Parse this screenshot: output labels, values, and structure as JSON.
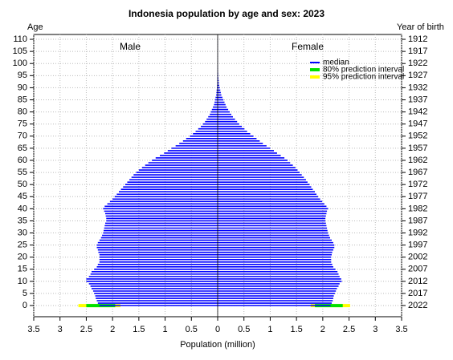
{
  "chart_data": {
    "type": "pyramid",
    "title": "Indonesia population by age and sex: 2023",
    "ylabel": "Age",
    "y2label": "Year of birth",
    "xlabel": "Population (million)",
    "xlim": [
      -3.5,
      3.5
    ],
    "xticks": [
      {
        "value": -3.5,
        "label": "3.5"
      },
      {
        "value": -3,
        "label": "3"
      },
      {
        "value": -2.5,
        "label": "2.5"
      },
      {
        "value": -2,
        "label": "2"
      },
      {
        "value": -1.5,
        "label": "1.5"
      },
      {
        "value": -1,
        "label": "1"
      },
      {
        "value": -0.5,
        "label": "0.5"
      },
      0,
      0.5,
      1,
      1.5,
      2,
      2.5,
      3,
      3.5
    ],
    "ylim": [
      -4.6,
      112
    ],
    "yticks": [
      0,
      5,
      10,
      15,
      20,
      25,
      30,
      35,
      40,
      45,
      50,
      55,
      60,
      65,
      70,
      75,
      80,
      85,
      90,
      95,
      100,
      105,
      110
    ],
    "y2lim": [
      -4.6,
      112
    ],
    "y2ticks": [
      {
        "value": 0,
        "label": "2022"
      },
      {
        "value": 5,
        "label": "2017"
      },
      {
        "value": 10,
        "label": "2012"
      },
      {
        "value": 15,
        "label": "2007"
      },
      {
        "value": 20,
        "label": "2002"
      },
      {
        "value": 25,
        "label": "1997"
      },
      {
        "value": 30,
        "label": "1992"
      },
      {
        "value": 35,
        "label": "1987"
      },
      {
        "value": 40,
        "label": "1982"
      },
      {
        "value": 45,
        "label": "1977"
      },
      {
        "value": 50,
        "label": "1972"
      },
      {
        "value": 55,
        "label": "1967"
      },
      {
        "value": 60,
        "label": "1962"
      },
      {
        "value": 65,
        "label": "1957"
      },
      {
        "value": 70,
        "label": "1952"
      },
      {
        "value": 75,
        "label": "1947"
      },
      {
        "value": 80,
        "label": "1942"
      },
      {
        "value": 85,
        "label": "1937"
      },
      {
        "value": 90,
        "label": "1932"
      },
      {
        "value": 95,
        "label": "1927"
      },
      {
        "value": 100,
        "label": "1922"
      },
      {
        "value": 105,
        "label": "1917"
      },
      {
        "value": 110,
        "label": "1912"
      }
    ],
    "grid": true,
    "y": [
      0,
      1,
      2,
      3,
      4,
      5,
      6,
      7,
      8,
      9,
      10,
      11,
      12,
      13,
      14,
      15,
      16,
      17,
      18,
      19,
      20,
      21,
      22,
      23,
      24,
      25,
      26,
      27,
      28,
      29,
      30,
      31,
      32,
      33,
      34,
      35,
      36,
      37,
      38,
      39,
      40,
      41,
      42,
      43,
      44,
      45,
      46,
      47,
      48,
      49,
      50,
      51,
      52,
      53,
      54,
      55,
      56,
      57,
      58,
      59,
      60,
      61,
      62,
      63,
      64,
      65,
      66,
      67,
      68,
      69,
      70,
      71,
      72,
      73,
      74,
      75,
      76,
      77,
      78,
      79,
      80,
      81,
      82,
      83,
      84,
      85,
      86,
      87,
      88,
      89,
      90,
      91,
      92,
      93,
      94,
      95,
      96,
      97,
      98,
      99,
      100,
      101,
      102,
      103,
      104,
      105,
      106,
      107,
      108,
      109,
      110
    ],
    "median_label": "median",
    "median_color": "#0000ff",
    "series": [
      {
        "name": "Male",
        "side": "left",
        "values": [
          2.25,
          2.28,
          2.3,
          2.32,
          2.33,
          2.35,
          2.37,
          2.4,
          2.42,
          2.45,
          2.5,
          2.5,
          2.45,
          2.42,
          2.4,
          2.35,
          2.3,
          2.28,
          2.25,
          2.25,
          2.25,
          2.25,
          2.27,
          2.28,
          2.3,
          2.3,
          2.28,
          2.25,
          2.22,
          2.2,
          2.18,
          2.17,
          2.16,
          2.15,
          2.14,
          2.12,
          2.12,
          2.13,
          2.14,
          2.16,
          2.18,
          2.15,
          2.1,
          2.05,
          2.0,
          1.96,
          1.92,
          1.88,
          1.84,
          1.8,
          1.76,
          1.72,
          1.68,
          1.64,
          1.6,
          1.55,
          1.5,
          1.44,
          1.38,
          1.32,
          1.25,
          1.18,
          1.1,
          1.02,
          0.95,
          0.88,
          0.8,
          0.73,
          0.66,
          0.6,
          0.53,
          0.47,
          0.42,
          0.37,
          0.32,
          0.28,
          0.24,
          0.21,
          0.18,
          0.15,
          0.13,
          0.11,
          0.09,
          0.07,
          0.06,
          0.05,
          0.04,
          0.03,
          0.025,
          0.02,
          0.015,
          0.012,
          0.01,
          0.008,
          0.006,
          0.005,
          0.004,
          0.003,
          0.002,
          0.002,
          0.001,
          0.001,
          0.001,
          0.001,
          0.001,
          0.001,
          0.001,
          0.001,
          0.001,
          0.001,
          0.001
        ]
      },
      {
        "name": "Female",
        "side": "right",
        "values": [
          2.15,
          2.17,
          2.19,
          2.2,
          2.21,
          2.23,
          2.25,
          2.27,
          2.3,
          2.32,
          2.36,
          2.35,
          2.32,
          2.3,
          2.28,
          2.24,
          2.2,
          2.18,
          2.16,
          2.16,
          2.16,
          2.17,
          2.18,
          2.2,
          2.22,
          2.22,
          2.2,
          2.17,
          2.14,
          2.12,
          2.1,
          2.09,
          2.08,
          2.07,
          2.06,
          2.05,
          2.05,
          2.06,
          2.07,
          2.08,
          2.1,
          2.07,
          2.03,
          1.99,
          1.95,
          1.91,
          1.88,
          1.85,
          1.81,
          1.78,
          1.75,
          1.71,
          1.68,
          1.64,
          1.6,
          1.56,
          1.52,
          1.48,
          1.43,
          1.38,
          1.33,
          1.27,
          1.2,
          1.13,
          1.07,
          1.0,
          0.93,
          0.86,
          0.8,
          0.74,
          0.68,
          0.62,
          0.56,
          0.51,
          0.46,
          0.41,
          0.37,
          0.33,
          0.29,
          0.26,
          0.23,
          0.2,
          0.17,
          0.15,
          0.13,
          0.11,
          0.09,
          0.07,
          0.06,
          0.05,
          0.04,
          0.03,
          0.025,
          0.02,
          0.015,
          0.012,
          0.009,
          0.007,
          0.005,
          0.004,
          0.003,
          0.002,
          0.002,
          0.002,
          0.002,
          0.002,
          0.002,
          0.002,
          0.002,
          0.002,
          0.002
        ]
      }
    ],
    "intervals": [
      {
        "name": "95% prediction interval",
        "color": "#ffff00",
        "age": 0,
        "male": [
          1.85,
          2.65
        ],
        "female": [
          1.77,
          2.52
        ]
      },
      {
        "name": "80% prediction interval",
        "color": "#00e000",
        "age": 0,
        "male": [
          1.95,
          2.5
        ],
        "female": [
          1.85,
          2.38
        ]
      }
    ]
  }
}
